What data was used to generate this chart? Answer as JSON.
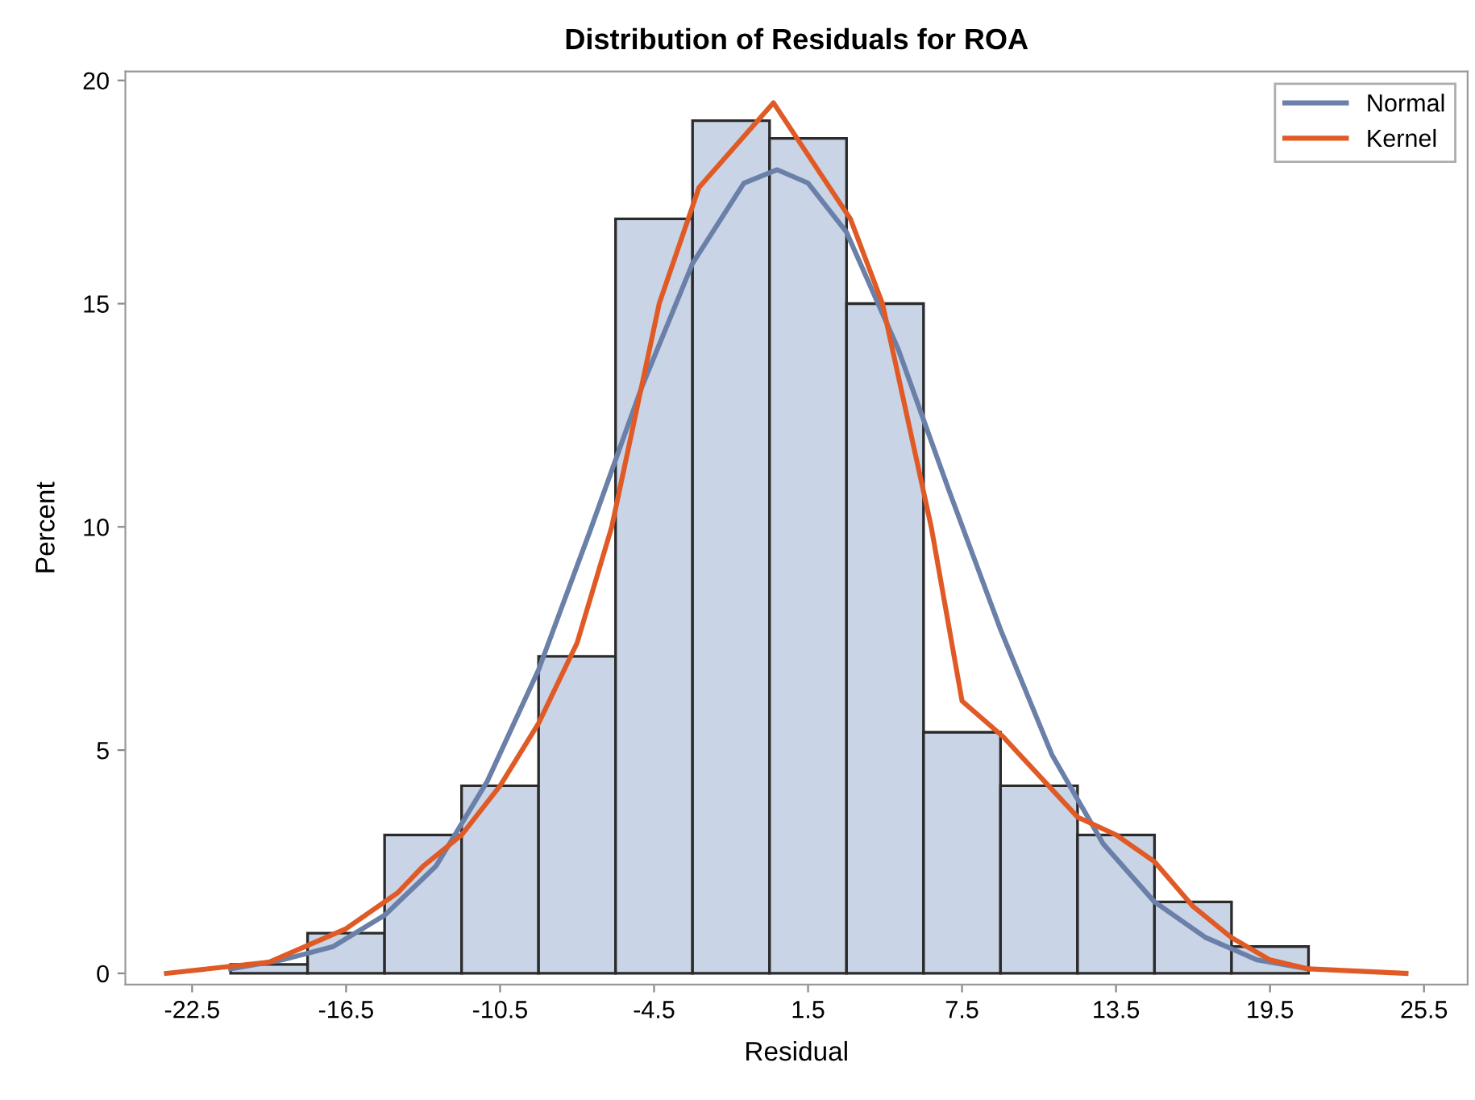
{
  "chart_data": {
    "type": "histogram",
    "title": "Distribution of Residuals for ROA",
    "xlabel": "Residual",
    "ylabel": "Percent",
    "bins": [
      -21,
      -18,
      -15,
      -12,
      -9,
      -6,
      -3,
      0,
      3,
      6,
      9,
      12,
      15,
      18,
      21
    ],
    "values": [
      0.2,
      0.9,
      3.1,
      4.2,
      7.1,
      16.9,
      19.1,
      18.7,
      15.0,
      5.4,
      4.2,
      3.1,
      1.6,
      0.6
    ],
    "color": "#c9d4e6",
    "series": [
      {
        "name": "Normal",
        "type": "line",
        "color": "#6a80a8",
        "x": [
          -21,
          -19,
          -17,
          -15,
          -13,
          -11,
          -9,
          -7,
          -5,
          -3,
          -1,
          0.3,
          1.5,
          3,
          5,
          7,
          9,
          11,
          13,
          15,
          17,
          19,
          21
        ],
        "values": [
          0.1,
          0.3,
          0.6,
          1.3,
          2.4,
          4.3,
          6.8,
          9.9,
          13.1,
          15.9,
          17.7,
          18.0,
          17.7,
          16.6,
          14.0,
          10.8,
          7.7,
          4.9,
          2.9,
          1.6,
          0.8,
          0.3,
          0.1
        ]
      },
      {
        "name": "Kernel",
        "type": "line",
        "color": "#e05a26",
        "x": [
          -23.5,
          -19.5,
          -16.5,
          -14.5,
          -13.5,
          -12,
          -10.5,
          -9,
          -7.5,
          -6.15,
          -4.3,
          -2.75,
          0.15,
          3.15,
          4.4,
          6.3,
          7.5,
          9.1,
          12,
          13.5,
          15,
          16.5,
          18,
          19.5,
          21,
          24.8
        ],
        "values": [
          0,
          0.25,
          1.0,
          1.8,
          2.4,
          3.1,
          4.2,
          5.6,
          7.4,
          10,
          15,
          17.6,
          19.5,
          16.9,
          15,
          10,
          6.1,
          5.3,
          3.5,
          3.1,
          2.5,
          1.5,
          0.8,
          0.3,
          0.1,
          0
        ]
      }
    ],
    "xlim": [
      -25.1,
      27.2
    ],
    "xticks": [
      -22.5,
      -16.5,
      -10.5,
      -4.5,
      1.5,
      7.5,
      13.5,
      19.5,
      25.5
    ],
    "ylim": [
      -0.25,
      20.2
    ],
    "yticks": [
      0,
      5,
      10,
      15,
      20
    ],
    "grid": false,
    "legend": "top right"
  }
}
